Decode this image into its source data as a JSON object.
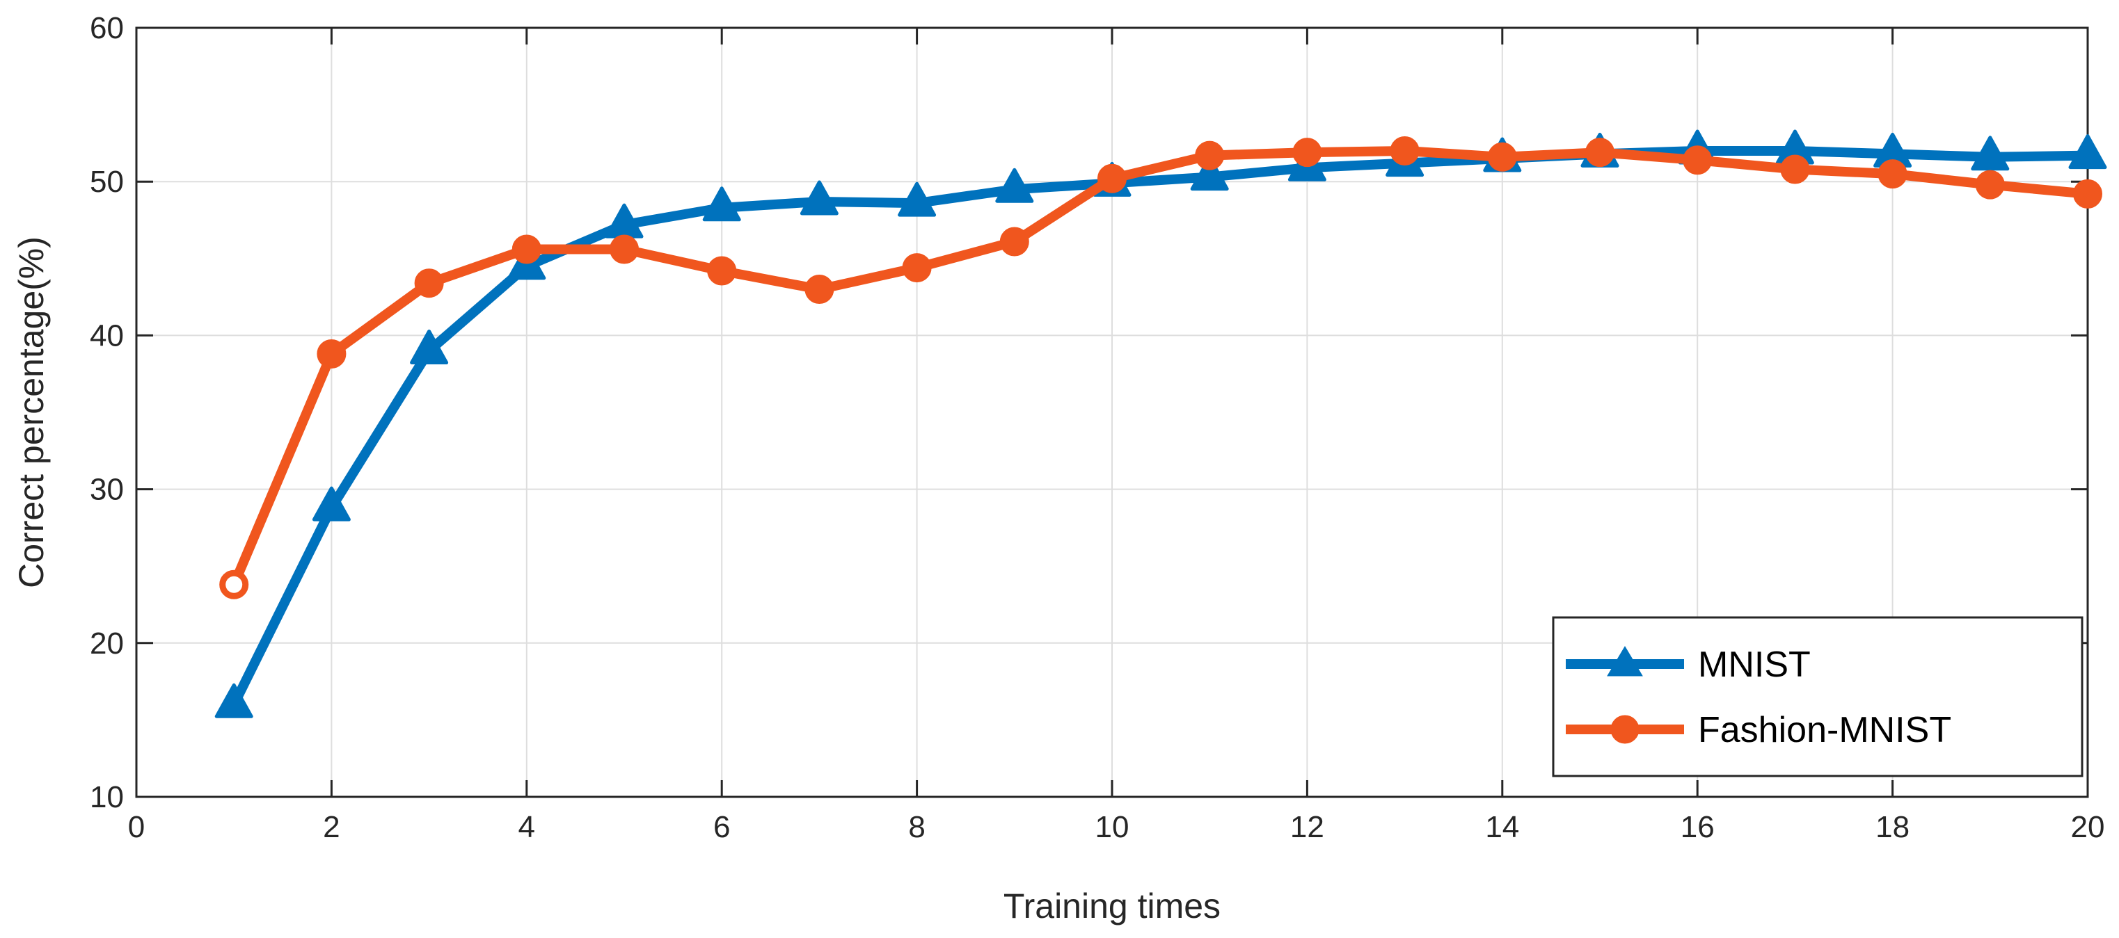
{
  "chart_data": {
    "type": "line",
    "title": "",
    "xlabel": "Training times",
    "ylabel": "Correct percentage(%)",
    "xlim": [
      0,
      20
    ],
    "ylim": [
      10,
      60
    ],
    "xticks": [
      0,
      2,
      4,
      6,
      8,
      10,
      12,
      14,
      16,
      18,
      20
    ],
    "yticks": [
      10,
      20,
      30,
      40,
      50,
      60
    ],
    "grid": true,
    "legend_position": "bottom-right",
    "x": [
      1,
      2,
      3,
      4,
      5,
      6,
      7,
      8,
      9,
      10,
      11,
      12,
      13,
      14,
      15,
      16,
      17,
      18,
      19,
      20
    ],
    "series": [
      {
        "name": "MNIST",
        "color": "#0072BD",
        "marker": "triangle",
        "values": [
          16.0,
          28.8,
          39.0,
          44.5,
          47.2,
          48.3,
          48.7,
          48.6,
          49.5,
          49.9,
          50.3,
          50.9,
          51.2,
          51.5,
          51.8,
          52.0,
          52.0,
          51.8,
          51.6,
          51.7
        ]
      },
      {
        "name": "Fashion-MNIST",
        "color": "#F0561E",
        "marker": "circle",
        "values": [
          23.8,
          38.8,
          43.4,
          45.6,
          45.6,
          44.2,
          43.0,
          44.4,
          46.1,
          50.2,
          51.7,
          51.9,
          52.0,
          51.6,
          51.9,
          51.4,
          50.8,
          50.5,
          49.8,
          49.2
        ]
      }
    ]
  }
}
